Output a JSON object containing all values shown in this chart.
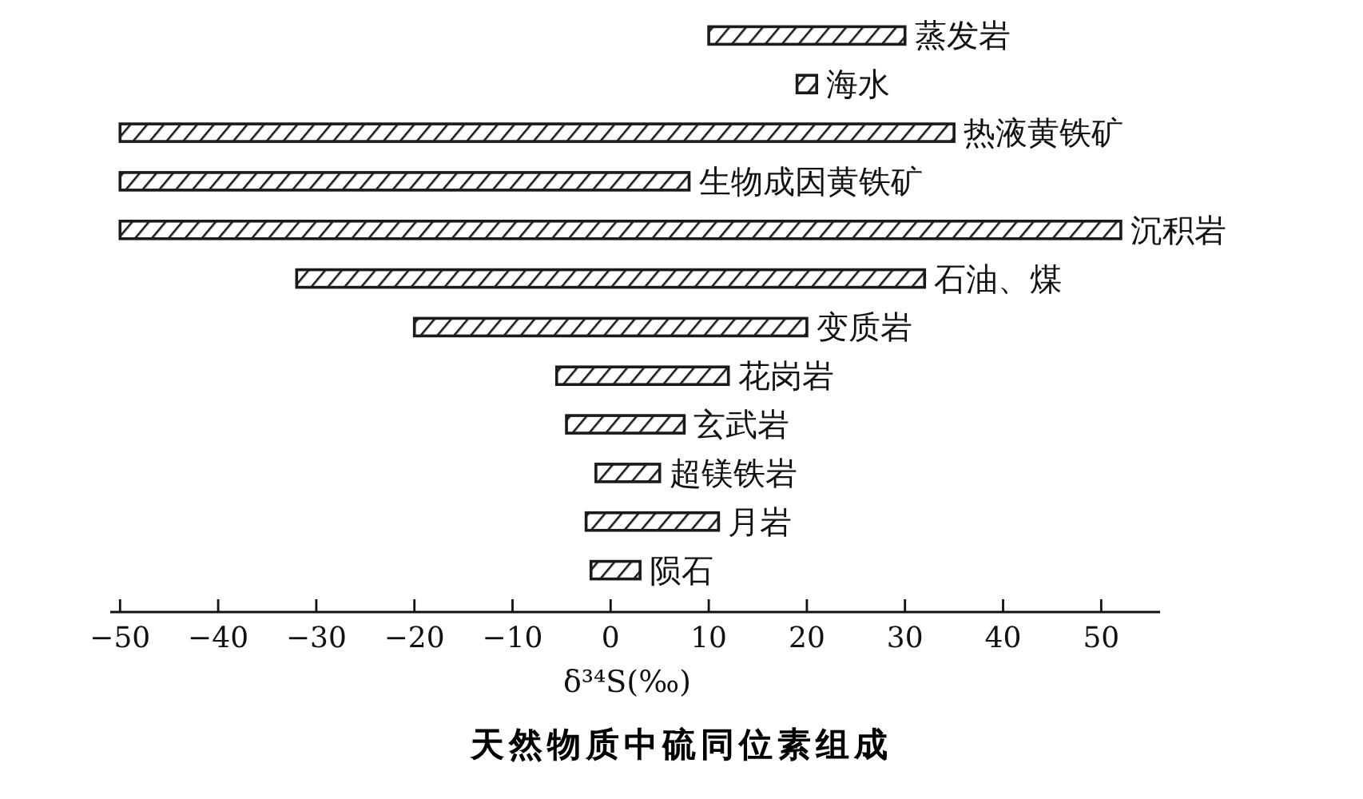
{
  "chart_data": {
    "type": "bar",
    "orientation": "horizontal",
    "title": "天然物质中硫同位素组成",
    "xlabel": "δ³⁴S(‰)",
    "categories": [
      "蒸发岩",
      "海水",
      "热液黄铁矿",
      "生物成因黄铁矿",
      "沉积岩",
      "石油、煤",
      "变质岩",
      "花岗岩",
      "玄武岩",
      "超镁铁岩",
      "月岩",
      "陨石"
    ],
    "base": [
      10,
      19,
      -50,
      -50,
      -50,
      -32,
      -20,
      -5.5,
      -4.5,
      -1.5,
      -2.5,
      -2
    ],
    "values": [
      20,
      2,
      85,
      58,
      102,
      64,
      40,
      17.5,
      12,
      6.5,
      13.5,
      5
    ],
    "color": "#1a1a1a",
    "xlim": [
      -51,
      56
    ],
    "xticks": [
      -50,
      -40,
      -30,
      -20,
      -10,
      0,
      10,
      20,
      30,
      40,
      50
    ]
  }
}
